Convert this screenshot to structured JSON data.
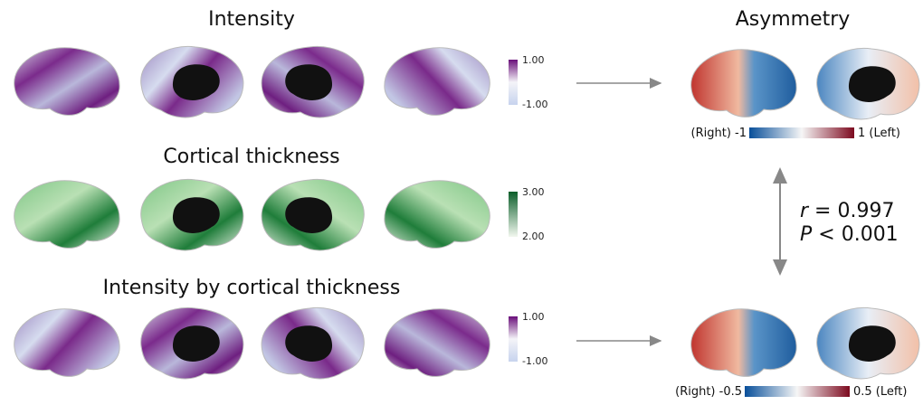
{
  "panels": [
    {
      "title": "Intensity",
      "colorbar": {
        "max": "1.00",
        "min": "-1.00"
      }
    },
    {
      "title": "Cortical thickness",
      "colorbar": {
        "max": "3.00",
        "min": "2.00"
      }
    },
    {
      "title": "Intensity by cortical thickness",
      "colorbar": {
        "max": "1.00",
        "min": "-1.00"
      }
    }
  ],
  "asymmetry": {
    "title": "Asymmetry",
    "scales": [
      {
        "left_label": "(Right) -1",
        "right_label": "1 (Left)"
      },
      {
        "left_label": "(Right) -0.5",
        "right_label": "0.5 (Left)"
      }
    ]
  },
  "correlation": {
    "r": {
      "symbol": "r",
      "text": " = 0.997"
    },
    "p": {
      "symbol": "P",
      "text": " < 0.001"
    }
  }
}
